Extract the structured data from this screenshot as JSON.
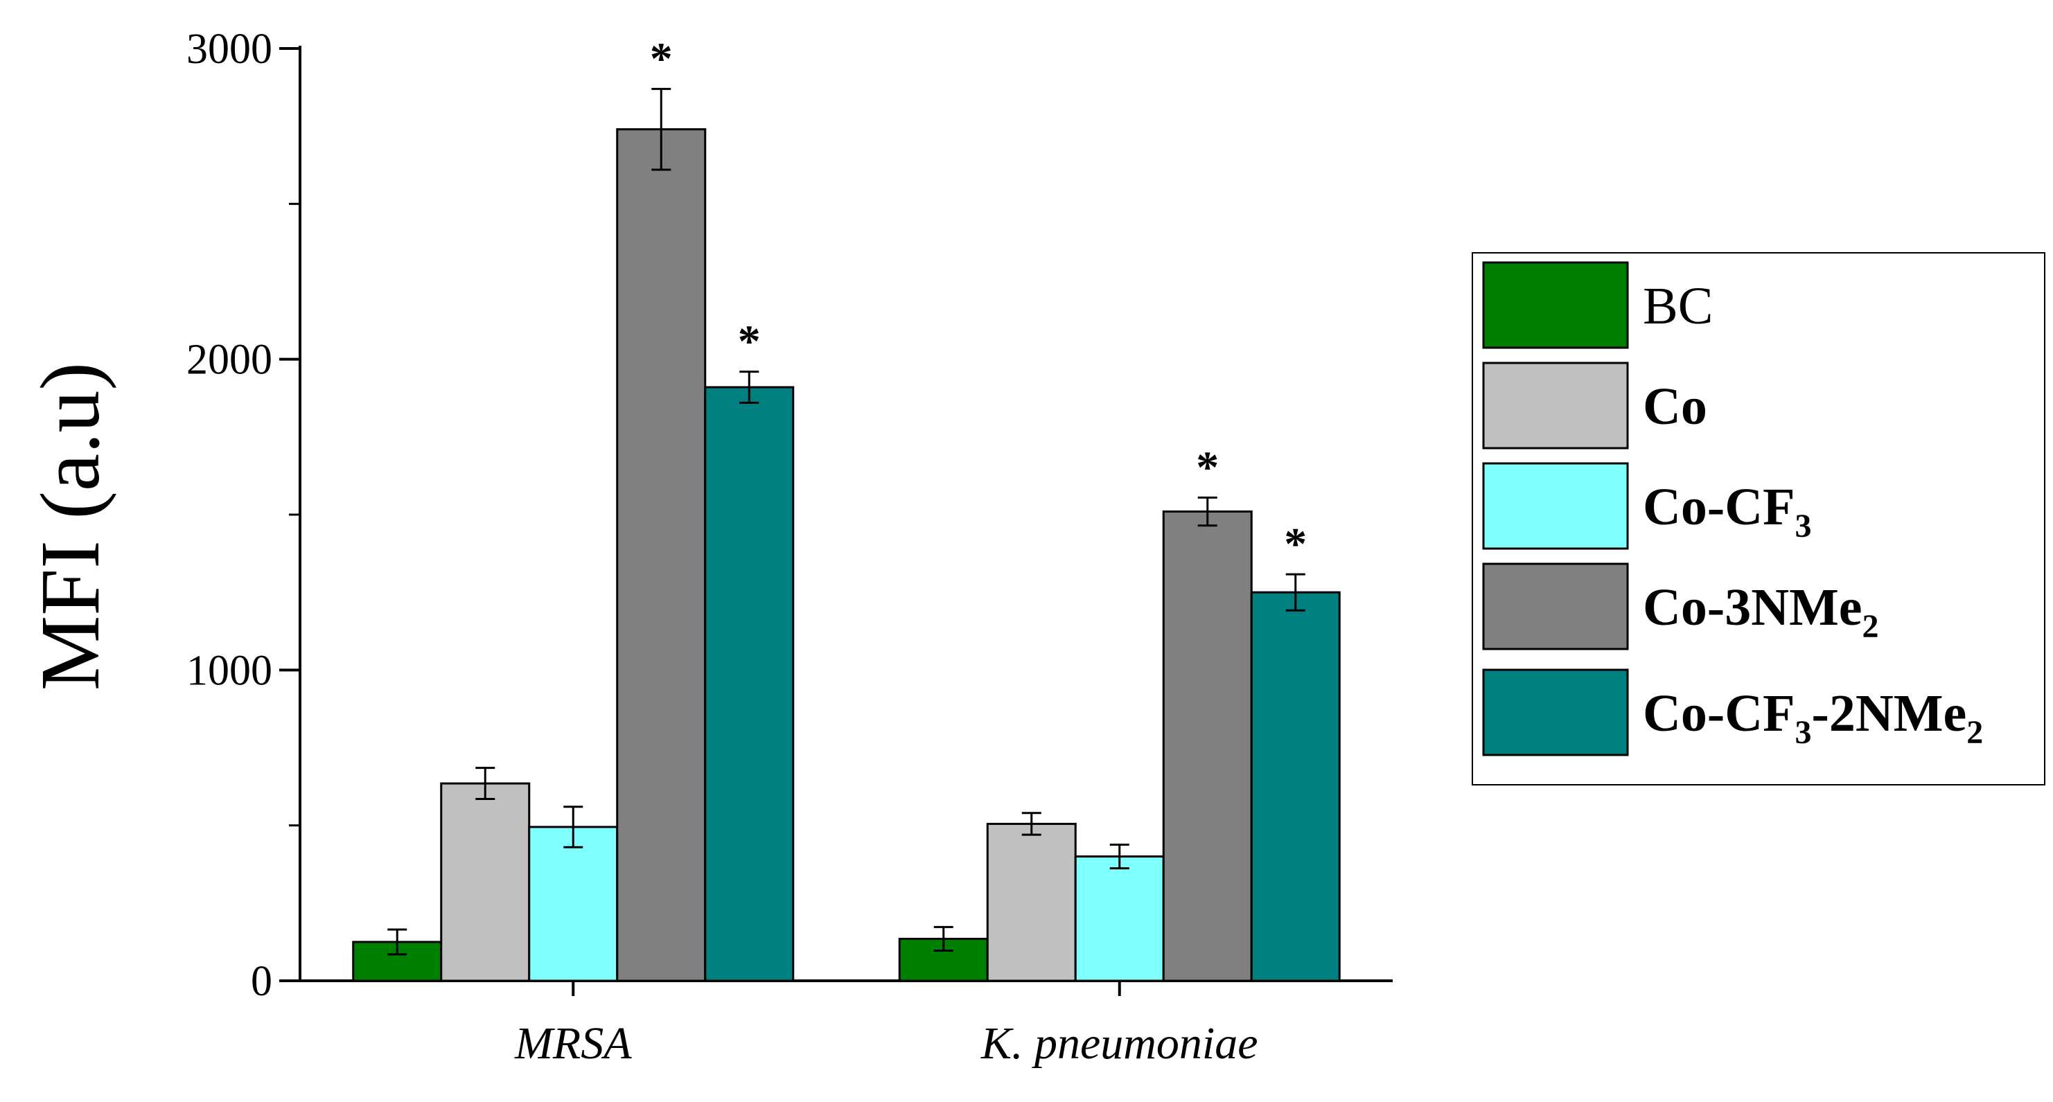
{
  "chart_data": {
    "type": "bar",
    "title": "",
    "xlabel": "",
    "ylabel": "MFI (a.u)",
    "ylim": [
      0,
      3000
    ],
    "yticks": [
      0,
      1000,
      2000,
      3000
    ],
    "categories": [
      "MRSA",
      "K. pneumoniae"
    ],
    "series": [
      {
        "name": "BC",
        "color": "#008000",
        "bold": false,
        "values": [
          125,
          135
        ],
        "errors": [
          40,
          38
        ],
        "significant": [
          false,
          false
        ]
      },
      {
        "name": "Co",
        "color": "#c0c0c0",
        "bold": true,
        "values": [
          635,
          505
        ],
        "errors": [
          50,
          35
        ],
        "significant": [
          false,
          false
        ]
      },
      {
        "name": "Co-CF3",
        "color": "#80ffff",
        "bold": true,
        "values": [
          495,
          400
        ],
        "errors": [
          65,
          38
        ],
        "significant": [
          false,
          false
        ]
      },
      {
        "name": "Co-3NMe2",
        "color": "#808080",
        "bold": true,
        "values": [
          2740,
          1510
        ],
        "errors": [
          130,
          45
        ],
        "significant": [
          true,
          true
        ]
      },
      {
        "name": "Co-CF3-2NMe2",
        "color": "#008080",
        "bold": true,
        "values": [
          1910,
          1250
        ],
        "errors": [
          50,
          58
        ],
        "significant": [
          true,
          true
        ]
      }
    ],
    "significance_marker": "*",
    "legend": {
      "position": "right",
      "entries": [
        {
          "base": "BC",
          "sub": "",
          "tail": "",
          "sub2": ""
        },
        {
          "base": "Co",
          "sub": "",
          "tail": "",
          "sub2": ""
        },
        {
          "base": "Co-CF",
          "sub": "3",
          "tail": "",
          "sub2": ""
        },
        {
          "base": "Co-3NMe",
          "sub": "2",
          "tail": "",
          "sub2": ""
        },
        {
          "base": "Co-CF",
          "sub": "3",
          "tail": "-2NMe",
          "sub2": "2"
        }
      ]
    }
  }
}
